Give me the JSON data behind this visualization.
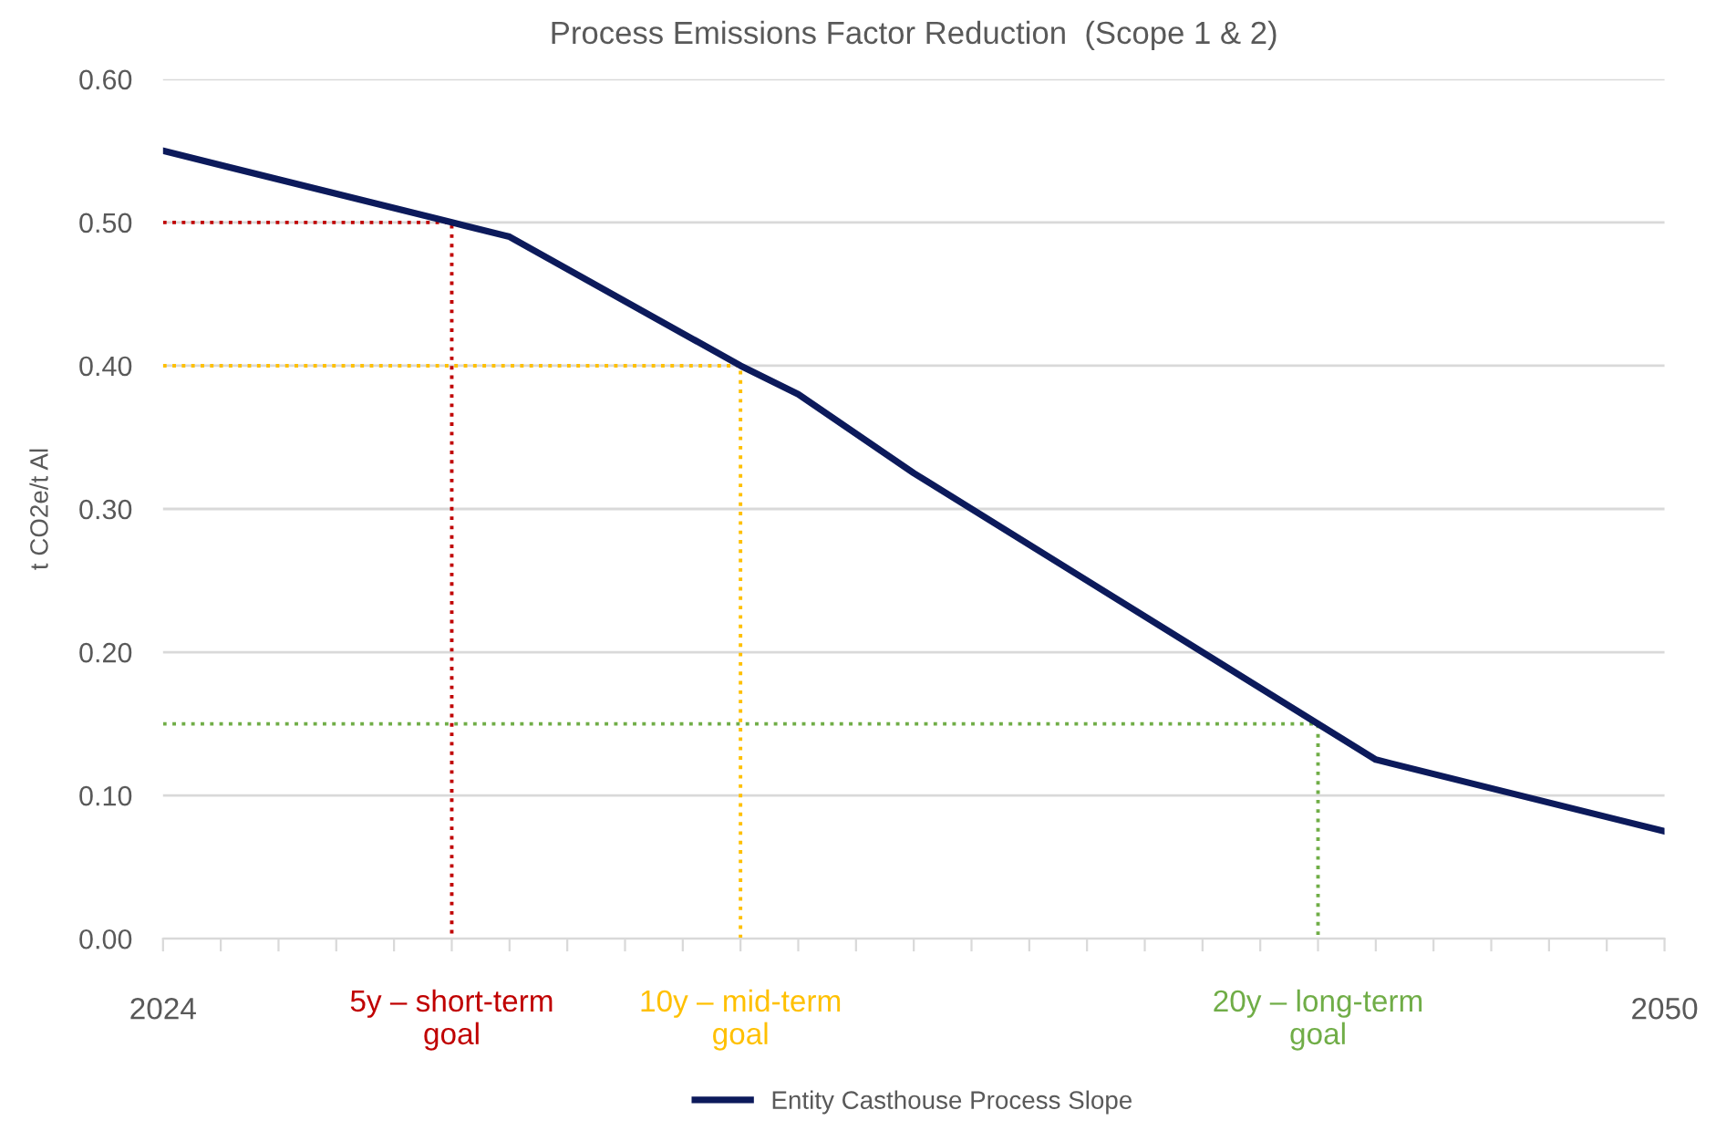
{
  "chart_data": {
    "type": "line",
    "title": "Process Emissions Factor Reduction  (Scope 1 & 2)",
    "ylabel": "t CO2e/t Al",
    "series": [
      {
        "name": "Entity Casthouse Process Slope",
        "color": "#0c1a5b",
        "x": [
          2024,
          2029,
          2030,
          2034,
          2035,
          2037,
          2040,
          2044,
          2045,
          2050
        ],
        "values": [
          0.55,
          0.5,
          0.49,
          0.4,
          0.38,
          0.325,
          0.25,
          0.15,
          0.125,
          0.075
        ],
        "line_style": "solid"
      },
      {
        "color": "#c00000",
        "x": [
          2024,
          2029,
          2029
        ],
        "values": [
          0.5,
          0.5,
          0.0
        ],
        "line_style": "dotted"
      },
      {
        "color": "#ffc000",
        "x": [
          2024,
          2034,
          2034
        ],
        "values": [
          0.4,
          0.4,
          0.0
        ],
        "line_style": "dotted"
      },
      {
        "color": "#70ad47",
        "x": [
          2024,
          2044,
          2044
        ],
        "values": [
          0.15,
          0.15,
          0.0
        ],
        "line_style": "dotted"
      }
    ],
    "xlim": [
      2024,
      2050
    ],
    "xticks": [
      2024,
      {
        "value": 2025,
        "label": null
      },
      {
        "value": 2026,
        "label": null
      },
      {
        "value": 2027,
        "label": null
      },
      {
        "value": 2028,
        "label": null
      },
      {
        "value": 2029,
        "label": null
      },
      {
        "value": 2030,
        "label": null
      },
      {
        "value": 2031,
        "label": null
      },
      {
        "value": 2032,
        "label": null
      },
      {
        "value": 2033,
        "label": null
      },
      {
        "value": 2034,
        "label": null
      },
      {
        "value": 2035,
        "label": null
      },
      {
        "value": 2036,
        "label": null
      },
      {
        "value": 2037,
        "label": null
      },
      {
        "value": 2038,
        "label": null
      },
      {
        "value": 2039,
        "label": null
      },
      {
        "value": 2040,
        "label": null
      },
      {
        "value": 2041,
        "label": null
      },
      {
        "value": 2042,
        "label": null
      },
      {
        "value": 2043,
        "label": null
      },
      {
        "value": 2044,
        "label": null
      },
      {
        "value": 2045,
        "label": null
      },
      {
        "value": 2046,
        "label": null
      },
      {
        "value": 2047,
        "label": null
      },
      {
        "value": 2048,
        "label": null
      },
      {
        "value": 2049,
        "label": null
      },
      2050
    ],
    "ylim": [
      0,
      0.6
    ],
    "yticks": [
      {
        "value": 0,
        "label": "0.00"
      },
      {
        "value": 0.1,
        "label": "0.10"
      },
      {
        "value": 0.2,
        "label": "0.20"
      },
      {
        "value": 0.3,
        "label": "0.30"
      },
      {
        "value": 0.4,
        "label": "0.40"
      },
      {
        "value": 0.5,
        "label": "0.50"
      },
      {
        "value": 0.6,
        "label": "0.60"
      }
    ],
    "annotations": [
      {
        "text": "5y – short-term\ngoal",
        "x": 2029,
        "y": 0
      },
      {
        "text": "10y – mid-term\ngoal",
        "x": 2034,
        "y": 0
      },
      {
        "text": "20y – long-term\ngoal",
        "x": 2044,
        "y": 0
      }
    ],
    "grid": "y",
    "legend": "bottom",
    "marker": "none"
  }
}
